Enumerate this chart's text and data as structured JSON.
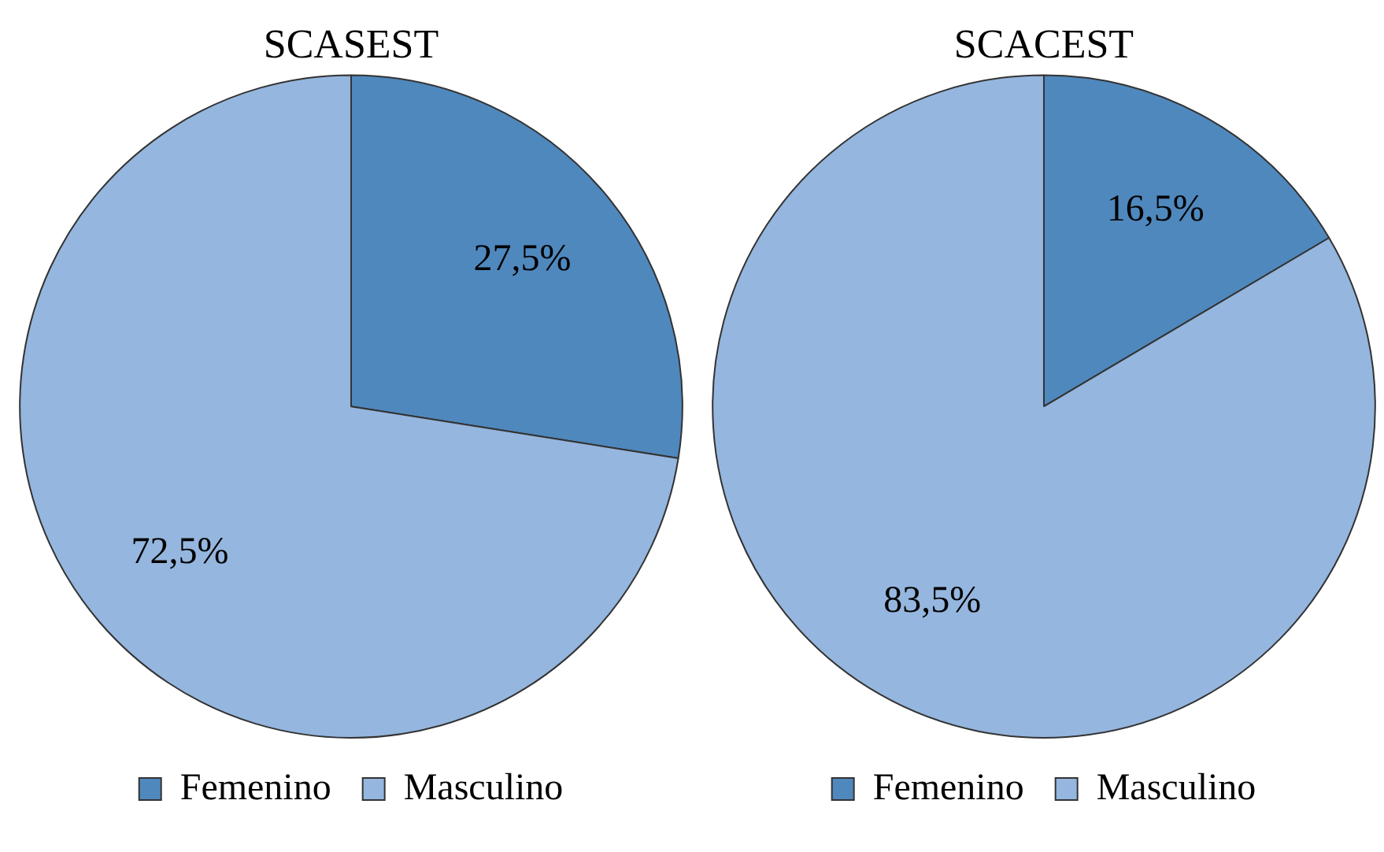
{
  "chart_data": [
    {
      "type": "pie",
      "title": "SCASEST",
      "categories": [
        "Femenino",
        "Masculino"
      ],
      "values": [
        27.5,
        72.5
      ],
      "value_labels": [
        "27,5%",
        "72,5%"
      ],
      "colors": [
        "#4f88bd",
        "#95b6de"
      ],
      "legend": "bottom"
    },
    {
      "type": "pie",
      "title": "SCACEST",
      "categories": [
        "Femenino",
        "Masculino"
      ],
      "values": [
        16.5,
        83.5
      ],
      "value_labels": [
        "16,5%",
        "83,5%"
      ],
      "colors": [
        "#4f88bd",
        "#95b6de"
      ],
      "legend": "bottom"
    }
  ]
}
